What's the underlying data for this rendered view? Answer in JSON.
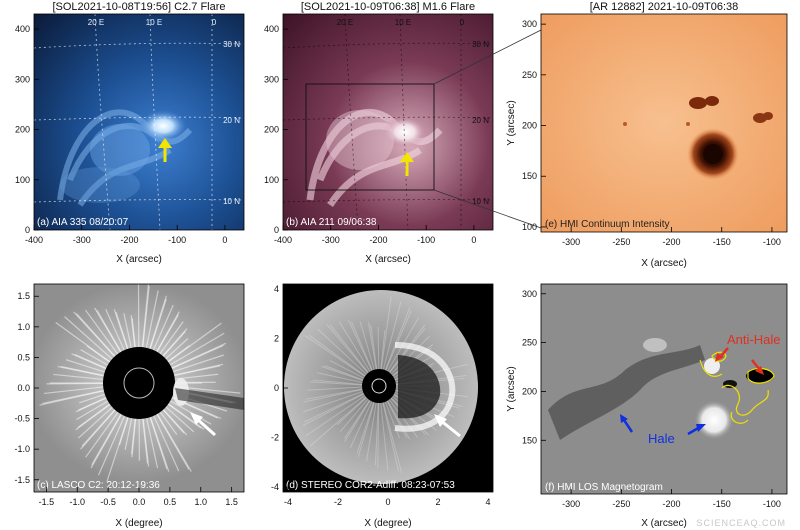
{
  "figure": {
    "titles": {
      "a": "[SOL2021-10-08T19:56] C2.7 Flare",
      "b": "[SOL2021-10-09T06:38] M1.6 Flare",
      "e": "[AR 12882] 2021-10-09T06:38"
    },
    "captions": {
      "a": "(a) AIA 335 08/20:07",
      "b": "(b) AIA 211 09/06:38",
      "c": "(c) LASCO C2: 20:12-19:36",
      "d": "(d) STEREO COR2-Adiff: 08:23-07:53",
      "e": "(e) HMI Continuum Intensity",
      "f": "(f) HMI LOS Magnetogram"
    },
    "axis_labels": {
      "arcsec_x": "X (arcsec)",
      "arcsec_y": "Y (arcsec)",
      "degree_x": "X (degree)"
    },
    "grid_labels": {
      "lon_20e": "20 E",
      "lon_10e": "10 E",
      "lon_0": "0",
      "lat_30n": "30 N",
      "lat_20n": "20 N",
      "lat_10n": "10 N"
    },
    "annotations": {
      "anti_hale": "Anti-Hale",
      "hale": "Hale"
    },
    "watermark": "SCIENCEAQ.COM",
    "colors": {
      "aia335": "#3d7fd0",
      "aia211": "#7a3a55",
      "continuum": "#f3b27a",
      "arrow_flare": "#f2e600",
      "arrow_anti_hale": "#e0301e",
      "arrow_hale": "#1030e0",
      "contour": "#f0e000"
    }
  },
  "chart_data": [
    {
      "type": "image",
      "panel": "a",
      "xlim": [
        -400,
        40
      ],
      "ylim": [
        0,
        430
      ],
      "xticks": [
        -400,
        -300,
        -200,
        -100,
        0
      ],
      "yticks": [
        0,
        100,
        200,
        300,
        400
      ],
      "arrow": "yellow"
    },
    {
      "type": "image",
      "panel": "b",
      "xlim": [
        -400,
        40
      ],
      "ylim": [
        0,
        430
      ],
      "xticks": [
        -400,
        -300,
        -200,
        -100,
        0
      ],
      "yticks": [
        0,
        100,
        200,
        300,
        400
      ],
      "arrow": "yellow",
      "zoom_box": "panel e"
    },
    {
      "type": "image",
      "panel": "c",
      "xlim": [
        -1.7,
        1.7
      ],
      "ylim": [
        -1.7,
        1.7
      ],
      "xticks": [
        -1.5,
        -1.0,
        -0.5,
        0.0,
        0.5,
        1.0,
        1.5
      ],
      "yticks": [
        -1.5,
        -1.0,
        -0.5,
        0.0,
        0.5,
        1.0,
        1.5
      ],
      "arrow": "white"
    },
    {
      "type": "image",
      "panel": "d",
      "xlim": [
        -4.2,
        4.2
      ],
      "ylim": [
        -4.2,
        4.2
      ],
      "xticks": [
        -4,
        -2,
        0,
        2,
        4
      ],
      "yticks": [
        -4,
        -2,
        0,
        2,
        4
      ],
      "arrow": "white"
    },
    {
      "type": "image",
      "panel": "e",
      "xlim": [
        -330,
        -85
      ],
      "ylim": [
        95,
        310
      ],
      "xticks": [
        -300,
        -250,
        -200,
        -150,
        -100
      ],
      "yticks": [
        100,
        150,
        200,
        250,
        300
      ]
    },
    {
      "type": "image",
      "panel": "f",
      "xlim": [
        -330,
        -85
      ],
      "ylim": [
        95,
        310
      ],
      "xticks": [
        -300,
        -250,
        -200,
        -150,
        -100
      ],
      "yticks": [
        150,
        200,
        250,
        300
      ],
      "arrows": [
        "red",
        "red",
        "blue"
      ]
    }
  ]
}
